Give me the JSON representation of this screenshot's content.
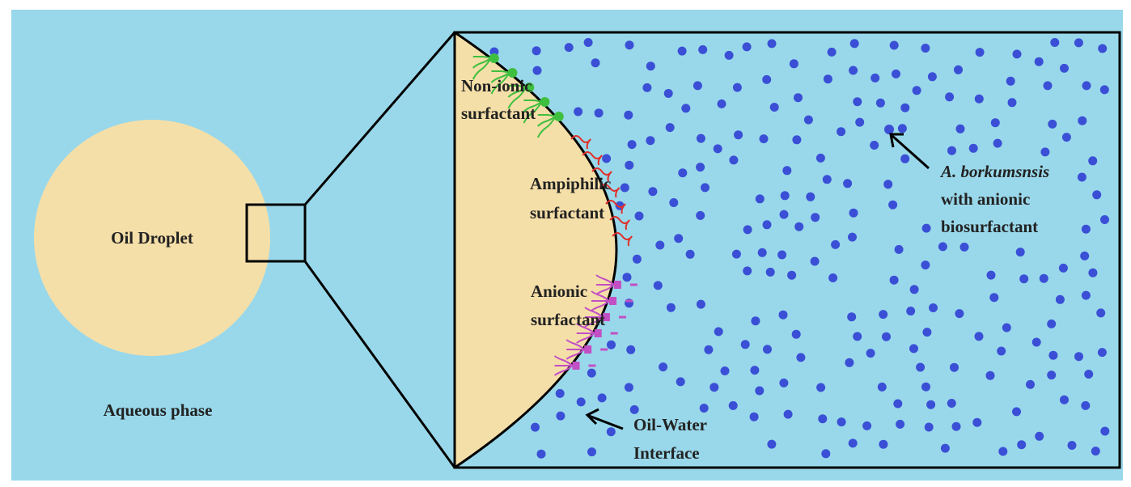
{
  "labels": {
    "oil_droplet": "Oil Droplet",
    "aqueous_phase": "Aqueous phase",
    "non_ionic_line1": "Non-ionic",
    "non_ionic_line2": "surfactant",
    "ampiphilic_line1": "Ampiphilic",
    "ampiphilic_line2": "surfactant",
    "anionic_line1": "Anionic",
    "anionic_line2": "surfactant",
    "interface_line1": "Oil-Water",
    "interface_line2": "Interface",
    "bacteria_line1": "A. borkumsnsis",
    "bacteria_line2": "with anionic",
    "bacteria_line3": "biosurfactant"
  },
  "colors": {
    "water": "#99d8ea",
    "oil": "#f5dfa8",
    "bacteria": "#3a4fd6",
    "non_ionic_surfactant": "#3fbf3f",
    "ampiphilic_surfactant": "#e0302a",
    "anionic_surfactant": "#c24fc4",
    "outline": "#000000"
  }
}
